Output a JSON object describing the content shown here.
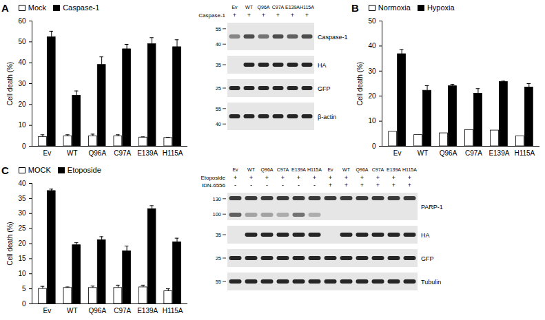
{
  "chart_data": [
    {
      "panel": "A",
      "type": "bar",
      "ylabel": "Cell death (%)",
      "legend": "top-left",
      "categories": [
        "Ev",
        "WT",
        "Q96A",
        "C97A",
        "E139A",
        "H115A"
      ],
      "ylim": [
        0,
        60
      ],
      "yticks": [
        0,
        10,
        20,
        30,
        40,
        50,
        60
      ],
      "series": [
        {
          "name": "Mock",
          "color": "#ffffff",
          "values": [
            4.5,
            4.8,
            4.8,
            4.8,
            4.2,
            4.0
          ],
          "errors": [
            1.0,
            0.7,
            1.0,
            0.7,
            0.3,
            0.3
          ]
        },
        {
          "name": "Caspase-1",
          "color": "#000000",
          "values": [
            52.3,
            24.2,
            39.0,
            46.5,
            49.0,
            47.5
          ],
          "errors": [
            2.8,
            2.3,
            3.8,
            2.3,
            3.0,
            3.5
          ]
        }
      ]
    },
    {
      "panel": "B",
      "type": "bar",
      "ylabel": "Cell death (%)",
      "legend": "top-left",
      "categories": [
        "Ev",
        "WT",
        "Q96A",
        "C97A",
        "E139A",
        "H115A"
      ],
      "ylim": [
        0,
        50
      ],
      "yticks": [
        0,
        10,
        20,
        30,
        40,
        50
      ],
      "series": [
        {
          "name": "Normoxia",
          "color": "#ffffff",
          "values": [
            5.8,
            4.5,
            5.2,
            6.5,
            6.3,
            4.0
          ],
          "errors": [
            0.0,
            0.0,
            0.0,
            0.0,
            0.0,
            0.0
          ]
        },
        {
          "name": "Hypoxia",
          "color": "#000000",
          "values": [
            36.8,
            22.2,
            24.0,
            21.0,
            25.7,
            23.5
          ],
          "errors": [
            1.8,
            2.0,
            0.7,
            2.0,
            0.3,
            1.5
          ]
        }
      ]
    },
    {
      "panel": "C",
      "type": "bar",
      "ylabel": "Cell death (%)",
      "legend": "top-left",
      "categories": [
        "Ev",
        "WT",
        "Q96A",
        "C97A",
        "E139A",
        "H115A"
      ],
      "ylim": [
        0,
        40
      ],
      "yticks": [
        0,
        5,
        10,
        15,
        20,
        25,
        30,
        35,
        40
      ],
      "series": [
        {
          "name": "MOCK",
          "color": "#ffffff",
          "values": [
            5.0,
            5.3,
            5.3,
            5.3,
            5.5,
            4.2
          ],
          "errors": [
            0.8,
            0.3,
            0.6,
            0.9,
            0.7,
            0.8
          ]
        },
        {
          "name": "Etoposide",
          "color": "#000000",
          "values": [
            37.5,
            19.5,
            21.2,
            17.5,
            31.5,
            20.5
          ],
          "errors": [
            0.6,
            0.8,
            1.1,
            1.7,
            1.1,
            1.3
          ]
        }
      ]
    }
  ],
  "blots": [
    {
      "lanes": [
        "Ev",
        "WT",
        "Q96A",
        "C97A",
        "E139A",
        "H115A"
      ],
      "treatments": [
        {
          "label": "Caspase-1",
          "signs": [
            "+",
            "+",
            "+",
            "+",
            "+",
            "+"
          ]
        }
      ],
      "rows": [
        {
          "label": "Caspase-1",
          "markers": [
            55,
            40
          ],
          "bands": [
            [
              0.5,
              0.8,
              0.6,
              0.8,
              0.7,
              0.8
            ]
          ]
        },
        {
          "label": "HA",
          "markers": [
            35
          ],
          "bands": [
            [
              0,
              1,
              1,
              1,
              1,
              1
            ]
          ]
        },
        {
          "label": "GFP",
          "markers": [
            25
          ],
          "bands": [
            [
              1,
              1,
              1,
              1,
              1,
              1
            ]
          ]
        },
        {
          "label": "β-actin",
          "markers": [
            55,
            40
          ],
          "bands": [
            [
              1,
              1,
              1,
              1,
              1,
              1
            ]
          ]
        }
      ]
    },
    {
      "lanes": [
        "Ev",
        "WT",
        "Q96A",
        "C97A",
        "E139A",
        "H115A",
        "Ev",
        "WT",
        "Q96A",
        "C97A",
        "E139A",
        "H115A"
      ],
      "treatments": [
        {
          "label": "Etoposide",
          "signs": [
            "+",
            "+",
            "+",
            "+",
            "+",
            "+",
            "+",
            "+",
            "+",
            "+",
            "+",
            "+"
          ]
        },
        {
          "label": "IDN-6556",
          "signs": [
            "-",
            "-",
            "-",
            "-",
            "-",
            "-",
            "+",
            "+",
            "+",
            "+",
            "+",
            "+"
          ]
        }
      ],
      "rows": [
        {
          "label": "PARP-1",
          "markers": [
            130,
            100
          ],
          "bands": [
            [
              0.9,
              0.9,
              0.9,
              0.9,
              0.9,
              0.9,
              0.9,
              0.9,
              0.9,
              0.9,
              0.9,
              0.9
            ],
            [
              0.7,
              0.35,
              0.35,
              0.3,
              0.6,
              0.3,
              0,
              0,
              0,
              0,
              0,
              0
            ]
          ]
        },
        {
          "label": "HA",
          "markers": [
            35
          ],
          "bands": [
            [
              0,
              1,
              1,
              1,
              1,
              1,
              0,
              1,
              1,
              1,
              1,
              1
            ]
          ]
        },
        {
          "label": "GFP",
          "markers": [
            25
          ],
          "bands": [
            [
              1,
              1,
              1,
              1,
              1,
              1,
              1,
              1,
              1,
              1,
              1,
              1
            ]
          ]
        },
        {
          "label": "Tubulin",
          "markers": [
            55
          ],
          "bands": [
            [
              1,
              1,
              1,
              1,
              1,
              1,
              1,
              1,
              1,
              1,
              1,
              1
            ]
          ]
        }
      ]
    }
  ]
}
